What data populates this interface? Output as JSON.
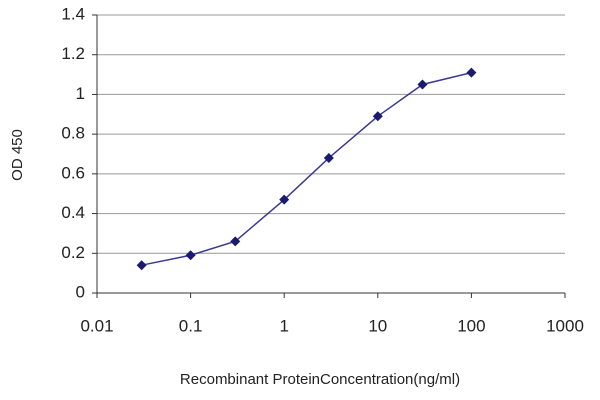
{
  "chart_data": {
    "type": "line",
    "x_label": "Recombinant ProteinConcentration(ng/ml)",
    "y_label": "OD 450",
    "x": [
      0.03,
      0.1,
      0.3,
      1,
      3,
      10,
      30,
      100
    ],
    "values": [
      0.14,
      0.19,
      0.26,
      0.47,
      0.68,
      0.89,
      1.05,
      1.11
    ],
    "color": "#3a3a96",
    "marker_color": "#1a1a6e",
    "xscale": "log",
    "xlim": [
      0.01,
      1000
    ],
    "xticks": [
      0.01,
      0.1,
      1,
      10,
      100,
      1000
    ],
    "ylim": [
      0,
      1.4
    ],
    "yticks": [
      0,
      0.2,
      0.4,
      0.6,
      0.8,
      1,
      1.2,
      1.4
    ],
    "grid": true
  }
}
